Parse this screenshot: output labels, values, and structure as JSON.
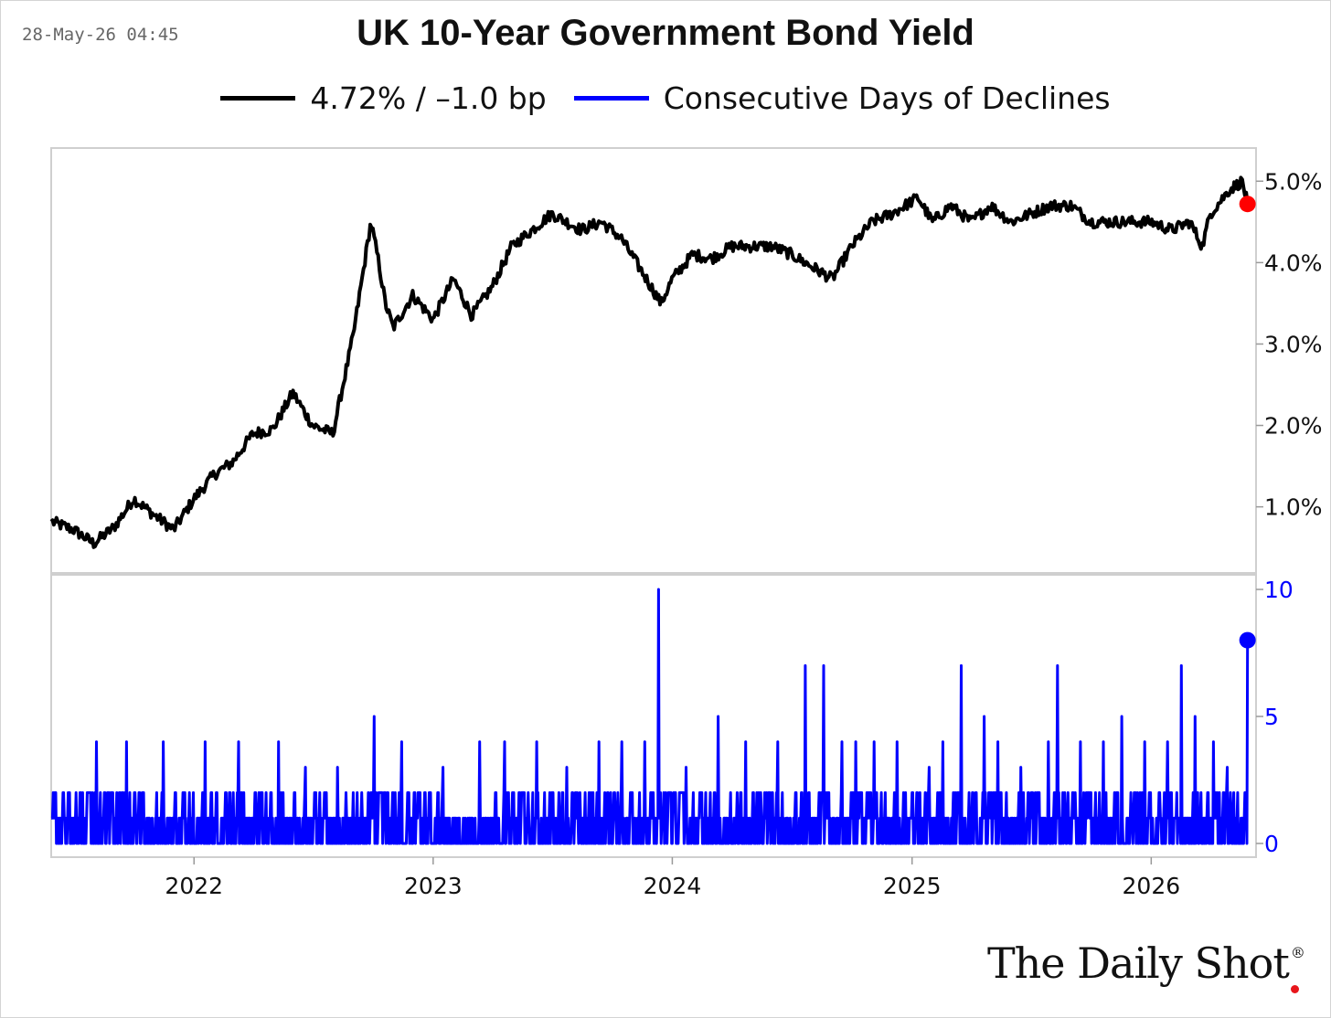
{
  "header": {
    "timestamp": "28-May-26 04:45",
    "title": "UK 10-Year Government Bond Yield"
  },
  "legend": [
    {
      "label": "4.72% / –1.0 bp",
      "color": "#000000"
    },
    {
      "label": "Consecutive Days of Declines",
      "color": "#0000ff"
    }
  ],
  "branding": {
    "logo_text": "The Daily Shot",
    "logo_mark": "®"
  },
  "colors": {
    "yield_line": "#000000",
    "declines_line": "#0000ff",
    "last_point_top": "#ff0000",
    "last_point_bottom": "#0000ff"
  },
  "chart_data": [
    {
      "type": "line",
      "title": "UK 10-Year Government Bond Yield",
      "series_name": "4.72% / –1.0 bp",
      "x_ticks": [
        "2022",
        "2023",
        "2024",
        "2025",
        "2026"
      ],
      "y_ticks": [
        "1.0%",
        "2.0%",
        "3.0%",
        "4.0%",
        "5.0%"
      ],
      "xlim": [
        "2021-05-28",
        "2026-06-10"
      ],
      "ylim": [
        0.3,
        5.25
      ],
      "grid": false,
      "last_value": 4.72,
      "x": [
        "2021-05-28",
        "2021-07-01",
        "2021-08-01",
        "2021-09-01",
        "2021-10-01",
        "2021-11-01",
        "2021-12-01",
        "2022-01-01",
        "2022-02-01",
        "2022-03-01",
        "2022-04-01",
        "2022-05-01",
        "2022-06-01",
        "2022-07-01",
        "2022-08-01",
        "2022-09-01",
        "2022-09-28",
        "2022-10-10",
        "2022-10-20",
        "2022-11-01",
        "2022-12-01",
        "2023-01-01",
        "2023-02-01",
        "2023-03-01",
        "2023-04-01",
        "2023-05-01",
        "2023-06-01",
        "2023-07-01",
        "2023-08-15",
        "2023-09-15",
        "2023-10-15",
        "2023-11-15",
        "2023-12-15",
        "2024-01-01",
        "2024-02-01",
        "2024-03-01",
        "2024-04-01",
        "2024-05-01",
        "2024-06-01",
        "2024-07-01",
        "2024-08-01",
        "2024-09-01",
        "2024-10-01",
        "2024-11-01",
        "2024-12-01",
        "2025-01-10",
        "2025-02-01",
        "2025-03-01",
        "2025-04-01",
        "2025-05-01",
        "2025-06-01",
        "2025-07-01",
        "2025-08-01",
        "2025-09-01",
        "2025-10-01",
        "2025-11-01",
        "2025-12-01",
        "2026-01-01",
        "2026-02-01",
        "2026-03-01",
        "2026-03-20",
        "2026-04-01",
        "2026-05-01",
        "2026-05-20",
        "2026-05-28"
      ],
      "y": [
        0.82,
        0.72,
        0.55,
        0.75,
        1.1,
        0.9,
        0.72,
        1.1,
        1.4,
        1.55,
        1.9,
        1.95,
        2.4,
        2.0,
        1.9,
        3.1,
        4.5,
        4.0,
        3.5,
        3.2,
        3.6,
        3.3,
        3.8,
        3.35,
        3.7,
        4.2,
        4.4,
        4.6,
        4.4,
        4.5,
        4.3,
        3.9,
        3.5,
        3.8,
        4.1,
        4.05,
        4.2,
        4.2,
        4.2,
        4.1,
        3.95,
        3.8,
        4.2,
        4.5,
        4.6,
        4.8,
        4.5,
        4.7,
        4.5,
        4.7,
        4.5,
        4.6,
        4.7,
        4.7,
        4.5,
        4.5,
        4.5,
        4.5,
        4.4,
        4.5,
        4.2,
        4.6,
        4.9,
        5.0,
        4.72
      ]
    },
    {
      "type": "line",
      "series_name": "Consecutive Days of Declines",
      "y_ticks": [
        "0",
        "5",
        "10"
      ],
      "ylim": [
        0,
        10
      ],
      "grid": false,
      "last_value": 8,
      "x": [
        "2021-08-05",
        "2021-09-20",
        "2021-11-15",
        "2022-01-18",
        "2022-03-10",
        "2022-05-10",
        "2022-06-20",
        "2022-08-08",
        "2022-10-03",
        "2022-11-14",
        "2023-01-16",
        "2023-03-13",
        "2023-04-20",
        "2023-06-08",
        "2023-07-24",
        "2023-09-11",
        "2023-10-16",
        "2023-11-20",
        "2023-12-11",
        "2024-01-22",
        "2024-03-11",
        "2024-04-22",
        "2024-06-10",
        "2024-07-22",
        "2024-08-19",
        "2024-09-16",
        "2024-10-07",
        "2024-11-04",
        "2024-12-09",
        "2025-01-27",
        "2025-02-17",
        "2025-03-17",
        "2025-04-21",
        "2025-05-12",
        "2025-06-16",
        "2025-07-28",
        "2025-08-11",
        "2025-09-15",
        "2025-10-20",
        "2025-11-17",
        "2025-12-22",
        "2026-01-26",
        "2026-02-16",
        "2026-03-09",
        "2026-04-06",
        "2026-04-27",
        "2026-05-28"
      ],
      "y": [
        4,
        4,
        4,
        4,
        4,
        4,
        3,
        3,
        5,
        4,
        3,
        4,
        4,
        4,
        3,
        4,
        4,
        4,
        10,
        3,
        5,
        4,
        4,
        7,
        7,
        4,
        4,
        4,
        4,
        3,
        4,
        7,
        5,
        4,
        3,
        4,
        7,
        4,
        4,
        5,
        4,
        4,
        7,
        5,
        4,
        3,
        8
      ]
    }
  ]
}
